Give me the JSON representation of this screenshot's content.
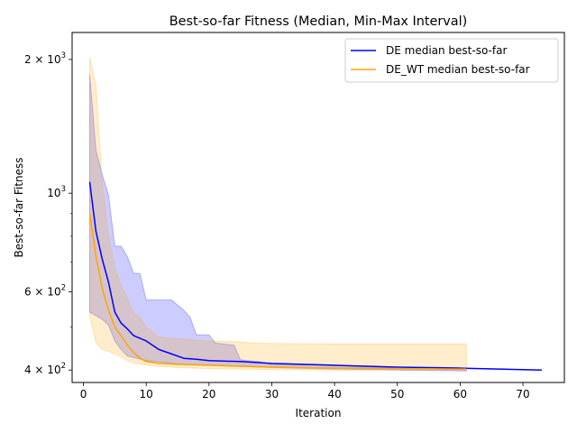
{
  "chart_data": {
    "type": "line",
    "title": "Best-so-far Fitness (Median, Min-Max Interval)",
    "xlabel": "Iteration",
    "ylabel": "Best-so-far Fitness",
    "xlim": [
      -1.8,
      76.6
    ],
    "ylim": [
      375,
      2300
    ],
    "yscale": "log",
    "grid": false,
    "legend_position": "top-right",
    "x_ticks": [
      {
        "value": 0,
        "label": "0"
      },
      {
        "value": 10,
        "label": "10"
      },
      {
        "value": 20,
        "label": "20"
      },
      {
        "value": 30,
        "label": "30"
      },
      {
        "value": 40,
        "label": "40"
      },
      {
        "value": 50,
        "label": "50"
      },
      {
        "value": 60,
        "label": "60"
      },
      {
        "value": 70,
        "label": "70"
      }
    ],
    "y_major_ticks": [
      {
        "value": 400,
        "label": "4 × 10²"
      },
      {
        "value": 600,
        "label": "6 × 10²"
      },
      {
        "value": 1000,
        "label": "10³"
      },
      {
        "value": 2000,
        "label": "2 × 10³"
      }
    ],
    "y_minor_ticks": [
      500,
      700,
      800,
      900
    ],
    "series": [
      {
        "name": "DE median best-so-far",
        "color": "#0000ff",
        "band_color": "#0000ff",
        "band_opacity": 0.2,
        "median": [
          [
            1,
            1060
          ],
          [
            2,
            820
          ],
          [
            3,
            710
          ],
          [
            4,
            630
          ],
          [
            5,
            540
          ],
          [
            6,
            510
          ],
          [
            7,
            495
          ],
          [
            8,
            478
          ],
          [
            10,
            465
          ],
          [
            12,
            445
          ],
          [
            14,
            435
          ],
          [
            16,
            425
          ],
          [
            18,
            423
          ],
          [
            20,
            420
          ],
          [
            25,
            418
          ],
          [
            30,
            414
          ],
          [
            40,
            410
          ],
          [
            50,
            406
          ],
          [
            60,
            404
          ],
          [
            73,
            400
          ]
        ],
        "upper": [
          [
            1,
            1850
          ],
          [
            2,
            1250
          ],
          [
            3,
            1100
          ],
          [
            4,
            990
          ],
          [
            5,
            760
          ],
          [
            6,
            760
          ],
          [
            7,
            720
          ],
          [
            8,
            660
          ],
          [
            9,
            660
          ],
          [
            10,
            575
          ],
          [
            14,
            575
          ],
          [
            16,
            545
          ],
          [
            17,
            525
          ],
          [
            18,
            480
          ],
          [
            20,
            480
          ],
          [
            21,
            460
          ],
          [
            24,
            455
          ],
          [
            25,
            422
          ],
          [
            26,
            420
          ],
          [
            28,
            418
          ],
          [
            30,
            412
          ],
          [
            40,
            410
          ],
          [
            50,
            404
          ],
          [
            61,
            402
          ]
        ],
        "lower": [
          [
            1,
            540
          ],
          [
            2,
            530
          ],
          [
            3,
            520
          ],
          [
            4,
            505
          ],
          [
            5,
            465
          ],
          [
            6,
            445
          ],
          [
            7,
            430
          ],
          [
            10,
            420
          ],
          [
            15,
            413
          ],
          [
            20,
            410
          ],
          [
            30,
            405
          ],
          [
            40,
            402
          ],
          [
            50,
            400
          ],
          [
            61,
            398
          ]
        ]
      },
      {
        "name": "DE_WT median best-so-far",
        "color": "#ffa500",
        "band_color": "#ffa500",
        "band_opacity": 0.2,
        "median": [
          [
            1,
            900
          ],
          [
            2,
            720
          ],
          [
            3,
            610
          ],
          [
            4,
            545
          ],
          [
            5,
            500
          ],
          [
            6,
            478
          ],
          [
            7,
            455
          ],
          [
            8,
            438
          ],
          [
            9,
            425
          ],
          [
            10,
            418
          ],
          [
            12,
            414
          ],
          [
            15,
            412
          ],
          [
            20,
            410
          ],
          [
            30,
            406
          ],
          [
            40,
            404
          ],
          [
            50,
            403
          ],
          [
            61,
            402
          ]
        ],
        "upper": [
          [
            1,
            2020
          ],
          [
            2,
            1750
          ],
          [
            3,
            1050
          ],
          [
            4,
            800
          ],
          [
            5,
            680
          ],
          [
            6,
            620
          ],
          [
            7,
            580
          ],
          [
            8,
            535
          ],
          [
            9,
            525
          ],
          [
            10,
            500
          ],
          [
            12,
            475
          ],
          [
            15,
            470
          ],
          [
            20,
            465
          ],
          [
            25,
            463
          ],
          [
            27,
            460
          ],
          [
            30,
            459
          ],
          [
            40,
            458
          ],
          [
            50,
            458
          ],
          [
            61,
            458
          ]
        ],
        "lower": [
          [
            1,
            530
          ],
          [
            2,
            460
          ],
          [
            3,
            445
          ],
          [
            4,
            440
          ],
          [
            5,
            435
          ],
          [
            6,
            428
          ],
          [
            7,
            420
          ],
          [
            8,
            415
          ],
          [
            10,
            410
          ],
          [
            15,
            405
          ],
          [
            20,
            403
          ],
          [
            30,
            401
          ],
          [
            40,
            400
          ],
          [
            61,
            400
          ]
        ]
      }
    ]
  }
}
